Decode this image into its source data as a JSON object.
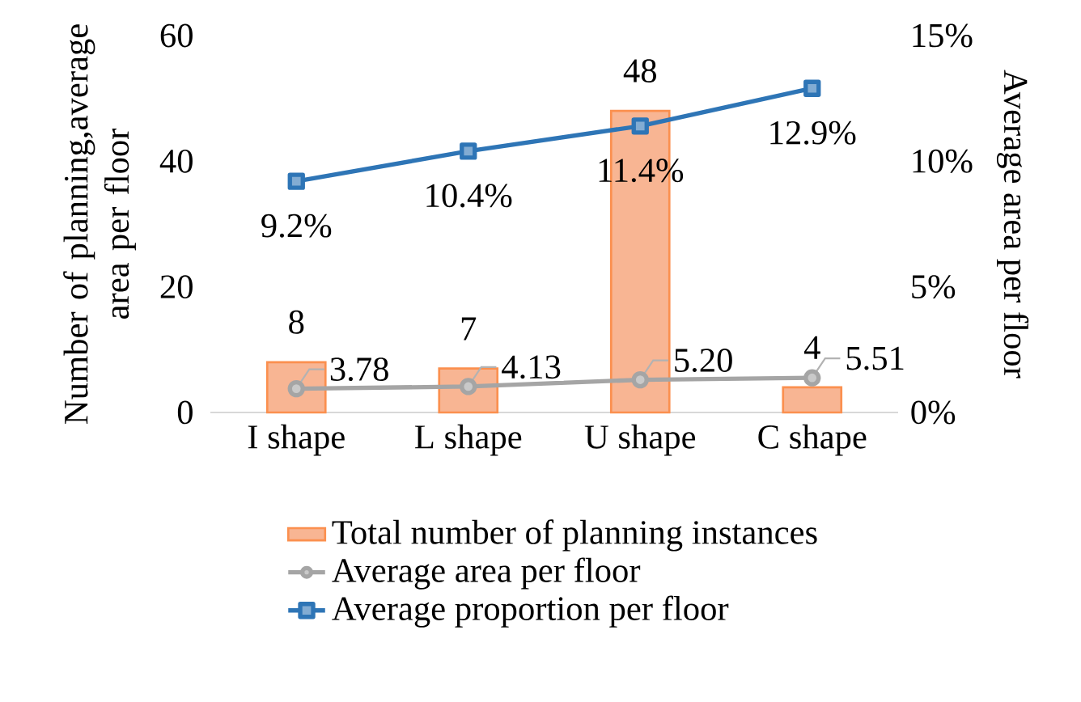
{
  "chart_data": {
    "type": "bar",
    "categories": [
      "I shape",
      "L shape",
      "U shape",
      "C shape"
    ],
    "ylabel": "Number of planning,average area per floor",
    "y2label": "Average area per floor",
    "ylim": [
      0,
      60
    ],
    "yticks": [
      0,
      20,
      40,
      60
    ],
    "y2lim": [
      0,
      15
    ],
    "y2ticks": [
      {
        "value": 0,
        "label": "0%"
      },
      {
        "value": 5,
        "label": "5%"
      },
      {
        "value": 10,
        "label": "10%"
      },
      {
        "value": 15,
        "label": "15%"
      }
    ],
    "legend": "bottom",
    "grid": false,
    "series": [
      {
        "name": "Total number of planning instances",
        "color": "#f8b593",
        "values": [
          8,
          7,
          48,
          4
        ],
        "value_labels": [
          "8",
          "7",
          "48",
          "4"
        ]
      },
      {
        "name": "Average area per floor",
        "type": "line",
        "color": "#a5a5a5",
        "marker": "circle",
        "values": [
          3.78,
          4.13,
          5.2,
          5.51
        ],
        "value_labels": [
          "3.78",
          "4.13",
          "5.20",
          "5.51"
        ]
      },
      {
        "name": "Average proportion per floor",
        "type": "line",
        "axis": "y2",
        "color": "#2e75b6",
        "marker": "square",
        "values": [
          9.2,
          10.4,
          11.4,
          12.9
        ],
        "value_labels": [
          "9.2%",
          "10.4%",
          "11.4%",
          "12.9%"
        ]
      }
    ]
  }
}
